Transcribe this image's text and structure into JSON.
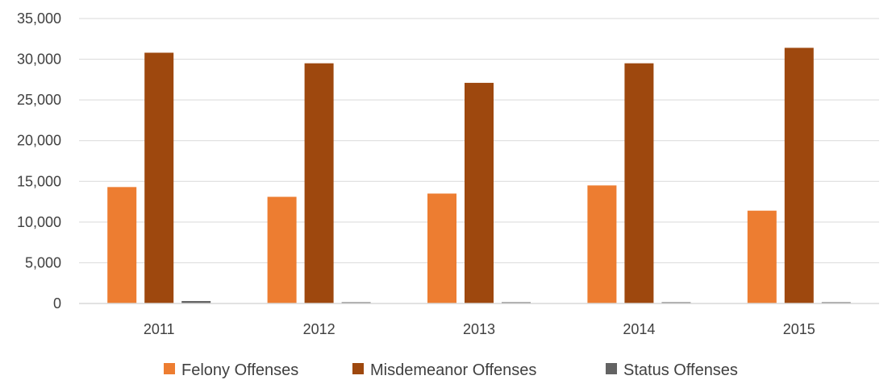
{
  "chart_data": {
    "type": "bar",
    "title": "",
    "xlabel": "",
    "ylabel": "",
    "categories": [
      "2011",
      "2012",
      "2013",
      "2014",
      "2015"
    ],
    "series": [
      {
        "name": "Felony Offenses",
        "color": "#ED7D31",
        "values": [
          14300,
          13100,
          13500,
          14500,
          11400
        ]
      },
      {
        "name": "Misdemeanor Offenses",
        "color": "#9E480E",
        "values": [
          30800,
          29500,
          27100,
          29500,
          31400
        ]
      },
      {
        "name": "Status Offenses",
        "color": "#636363",
        "values": [
          300,
          150,
          150,
          150,
          150
        ]
      }
    ],
    "ylim": [
      0,
      35000
    ],
    "yticks": [
      0,
      5000,
      10000,
      15000,
      20000,
      25000,
      30000,
      35000
    ],
    "ytick_labels": [
      "0",
      "5,000",
      "10,000",
      "15,000",
      "20,000",
      "25,000",
      "30,000",
      "35,000"
    ],
    "grid": true,
    "legend_position": "bottom"
  }
}
